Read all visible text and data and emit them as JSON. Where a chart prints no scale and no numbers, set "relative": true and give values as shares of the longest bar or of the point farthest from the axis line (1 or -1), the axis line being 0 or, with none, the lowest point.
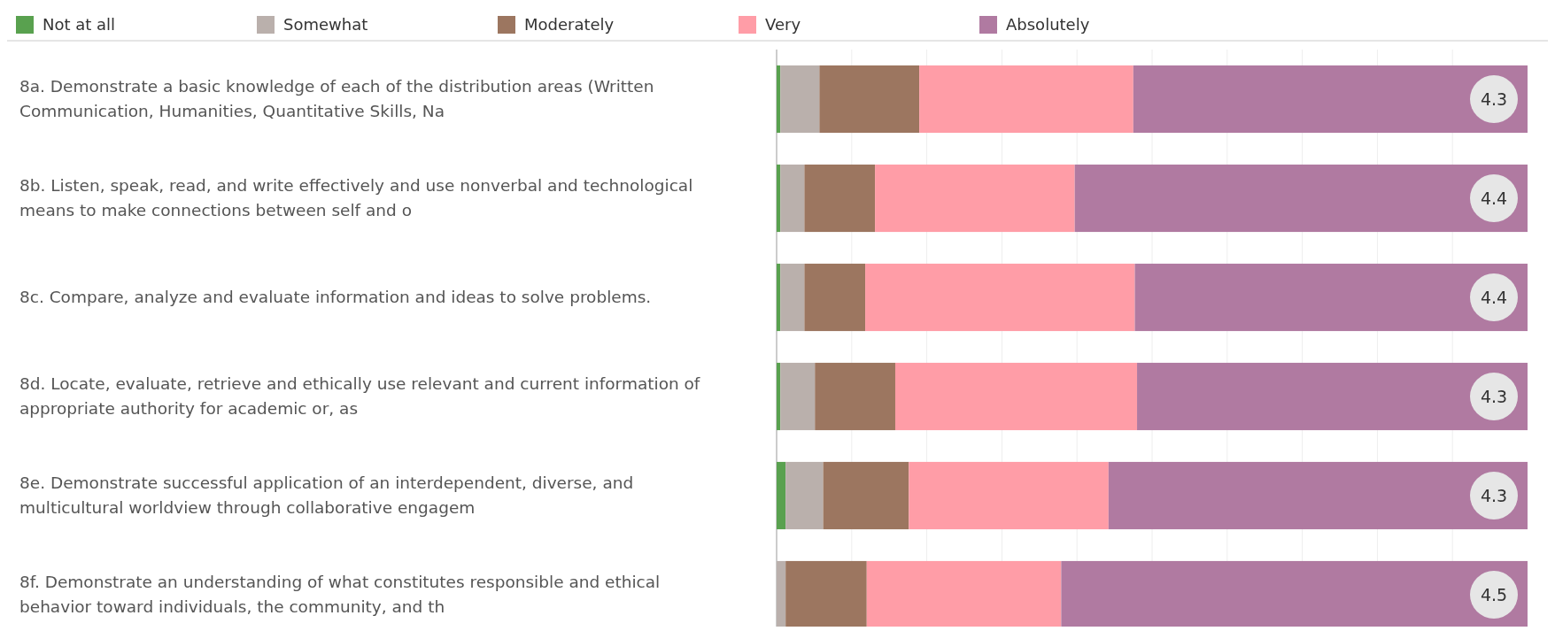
{
  "chart_data": {
    "type": "bar",
    "orientation": "horizontal",
    "stacked": true,
    "relative": true,
    "legend": "top",
    "grid": "x",
    "categories": [
      "8a. Demonstrate a basic knowledge of each of the distribution areas (Written Communication, Humanities, Quantitative Skills, Na",
      "8b. Listen, speak, read, and write effectively and use nonverbal and technological means to make connections between self and o",
      "8c. Compare, analyze and evaluate information and ideas to solve problems.",
      "8d. Locate, evaluate, retrieve and ethically use relevant and current information of appropriate authority for academic or, as",
      "8e. Demonstrate successful application of an interdependent, diverse, and multicultural worldview through collaborative engagem",
      "8f. Demonstrate an understanding of what constitutes responsible and ethical behavior toward individuals, the community, and th"
    ],
    "series": [
      {
        "name": "Not at all",
        "color": "#59a14f",
        "values": [
          0.005,
          0.005,
          0.005,
          0.005,
          0.012,
          0
        ]
      },
      {
        "name": "Somewhat",
        "color": "#bab0ac",
        "values": [
          0.052,
          0.032,
          0.032,
          0.046,
          0.05,
          0.012
        ]
      },
      {
        "name": "Moderately",
        "color": "#9c7660",
        "values": [
          0.133,
          0.094,
          0.081,
          0.107,
          0.114,
          0.108
        ]
      },
      {
        "name": "Very",
        "color": "#ff9da7",
        "values": [
          0.285,
          0.266,
          0.359,
          0.322,
          0.266,
          0.259
        ]
      },
      {
        "name": "Absolutely",
        "color": "#b07aa1",
        "values": [
          0.525,
          0.603,
          0.523,
          0.52,
          0.558,
          0.621
        ]
      }
    ],
    "annotations": [
      "4.3",
      "4.4",
      "4.4",
      "4.3",
      "4.3",
      "4.5"
    ]
  }
}
